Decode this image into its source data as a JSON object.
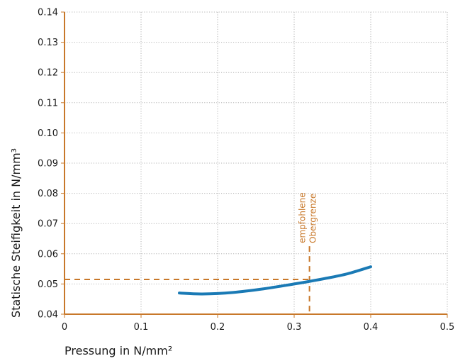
{
  "chart_data": {
    "type": "line",
    "xlabel": "Pressung in N/mm²",
    "ylabel": "Statische Steifigkeit in N/mm³",
    "xlim": [
      0,
      0.5
    ],
    "ylim": [
      0.04,
      0.14
    ],
    "x_ticks": [
      "0",
      "0.1",
      "0.2",
      "0.3",
      "0.4",
      "0.5"
    ],
    "y_ticks": [
      "0.04",
      "0.05",
      "0.06",
      "0.07",
      "0.08",
      "0.09",
      "0.10",
      "0.11",
      "0.12",
      "0.13",
      "0.14"
    ],
    "grid": true,
    "series": [
      {
        "color": "#1a7ab5",
        "points": [
          [
            0.15,
            0.047
          ],
          [
            0.18,
            0.0467
          ],
          [
            0.22,
            0.0472
          ],
          [
            0.26,
            0.0484
          ],
          [
            0.3,
            0.05
          ],
          [
            0.34,
            0.0518
          ],
          [
            0.37,
            0.0534
          ],
          [
            0.4,
            0.0557
          ]
        ]
      }
    ],
    "reference_lines": {
      "color": "#c8782a",
      "x": 0.32,
      "y": 0.0515
    },
    "annotation": {
      "lines": [
        "empfohlene",
        "Obergrenze"
      ],
      "color": "#c8782a"
    },
    "axis_color": "#c8782a",
    "grid_color": "#b5b5b5"
  }
}
